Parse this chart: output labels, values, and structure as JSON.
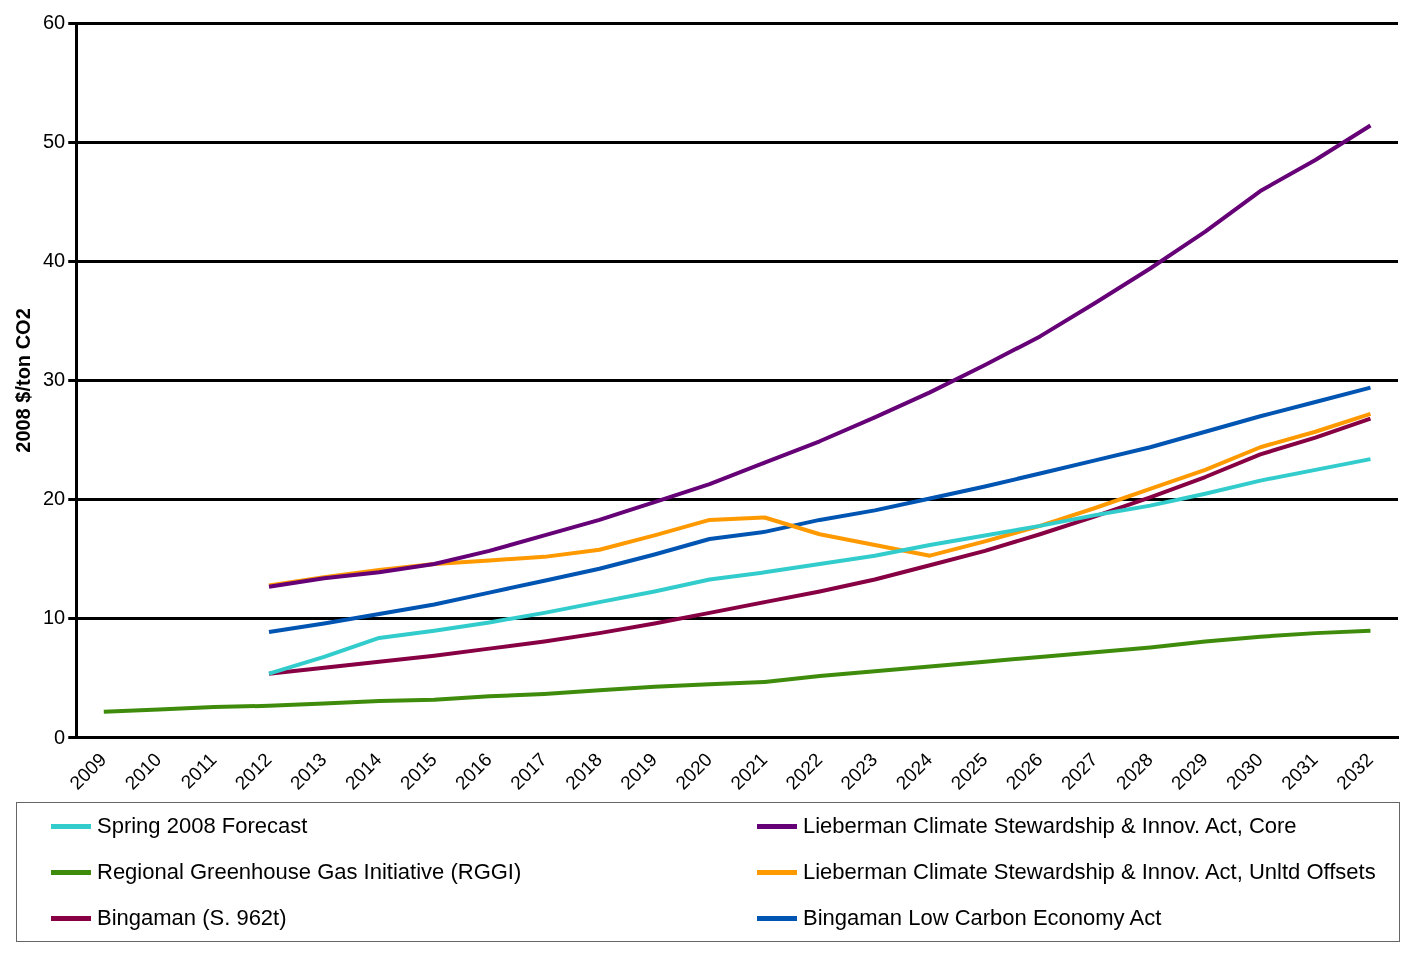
{
  "chart_data": {
    "type": "line",
    "ylabel": "2008 $/ton CO2",
    "categories": [
      "2009",
      "2010",
      "2011",
      "2012",
      "2013",
      "2014",
      "2015",
      "2016",
      "2017",
      "2018",
      "2019",
      "2020",
      "2021",
      "2022",
      "2023",
      "2024",
      "2025",
      "2026",
      "2027",
      "2028",
      "2029",
      "2030",
      "2031",
      "2032"
    ],
    "series": [
      {
        "name": "Spring 2008 Forecast",
        "color": "#33cccc",
        "values": [
          null,
          null,
          null,
          5.4,
          6.8,
          8.4,
          9.0,
          9.7,
          10.5,
          11.4,
          12.3,
          13.3,
          13.9,
          14.6,
          15.3,
          16.2,
          17.0,
          17.8,
          18.7,
          19.5,
          20.5,
          21.6,
          22.5,
          23.4
        ]
      },
      {
        "name": "Lieberman Climate Stewardship & Innov. Act, Core",
        "color": "#660077",
        "values": [
          null,
          null,
          null,
          12.7,
          13.4,
          13.9,
          14.6,
          15.7,
          17.0,
          18.3,
          19.8,
          21.3,
          23.1,
          24.9,
          26.9,
          29.0,
          31.3,
          33.7,
          36.5,
          39.4,
          42.5,
          45.9,
          48.5,
          51.4
        ]
      },
      {
        "name": "Regional Greenhouse Gas Initiative (RGGI)",
        "color": "#3f8c0c",
        "values": [
          2.2,
          2.4,
          2.6,
          2.7,
          2.9,
          3.1,
          3.2,
          3.5,
          3.7,
          4.0,
          4.3,
          4.5,
          4.7,
          5.2,
          5.6,
          6.0,
          6.4,
          6.8,
          7.2,
          7.6,
          8.1,
          8.5,
          8.8,
          9.0
        ]
      },
      {
        "name": "Lieberman Climate Stewardship & Innov. Act, Unltd Offsets",
        "color": "#ff9900",
        "values": [
          null,
          null,
          null,
          12.8,
          13.5,
          14.1,
          14.6,
          14.9,
          15.2,
          15.8,
          17.0,
          18.3,
          18.5,
          17.1,
          16.2,
          15.3,
          16.5,
          17.8,
          19.3,
          20.9,
          22.5,
          24.4,
          25.7,
          27.2
        ]
      },
      {
        "name": "Bingaman (S. 962t)",
        "color": "#880044",
        "values": [
          null,
          null,
          null,
          5.4,
          5.9,
          6.4,
          6.9,
          7.5,
          8.1,
          8.8,
          9.6,
          10.5,
          11.4,
          12.3,
          13.3,
          14.5,
          15.7,
          17.1,
          18.6,
          20.2,
          21.9,
          23.8,
          25.2,
          26.8
        ]
      },
      {
        "name": "Bingaman Low Carbon Economy Act",
        "color": "#0055b3",
        "values": [
          null,
          null,
          null,
          8.9,
          9.6,
          10.4,
          11.2,
          12.2,
          13.2,
          14.2,
          15.4,
          16.7,
          17.3,
          18.3,
          19.1,
          20.1,
          21.1,
          22.2,
          23.3,
          24.4,
          25.7,
          27.0,
          28.2,
          29.4
        ]
      }
    ],
    "ylim": [
      0,
      60
    ],
    "yticks": [
      0,
      10,
      20,
      30,
      40,
      50,
      60
    ],
    "grid": "y",
    "legend": "bottom",
    "marker": "none",
    "line_style": "solid"
  }
}
